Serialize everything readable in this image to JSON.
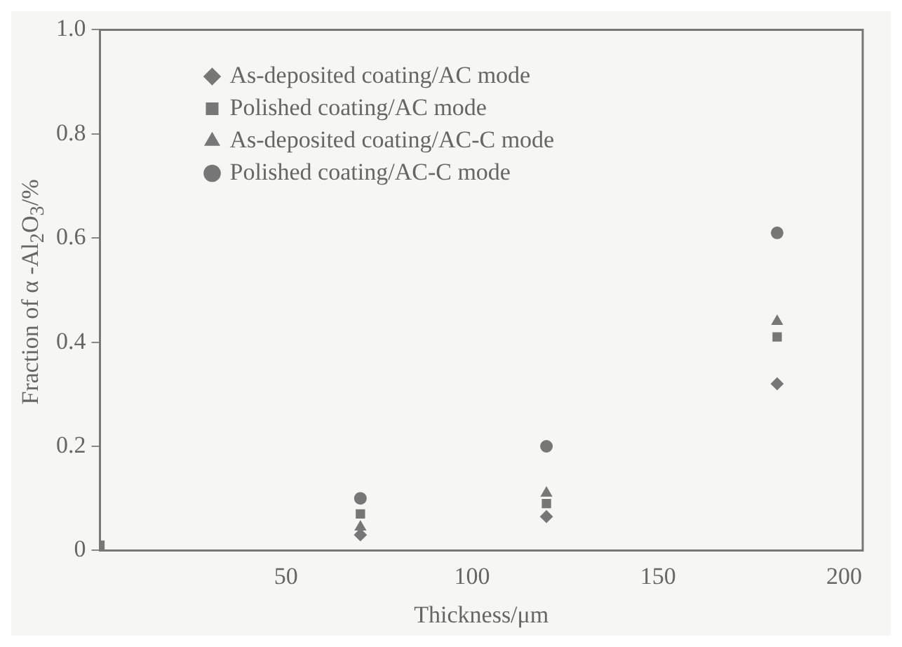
{
  "chart_data": {
    "type": "scatter",
    "xlabel": "Thickness/μm",
    "ylabel": "Fraction of α -Al$_{2}$O$_{3}$/%",
    "xlim": [
      0,
      205
    ],
    "xticks": [
      50,
      100,
      150,
      200
    ],
    "ylim": [
      0,
      1.0
    ],
    "yticks": [
      0,
      0.2,
      0.4,
      0.6,
      0.8,
      {
        "value": 1.0,
        "label": "1.0"
      }
    ],
    "grid": false,
    "legend": "top left",
    "series": [
      {
        "name": "As-deposited coating/AC mode",
        "color": "#777777",
        "marker": "diamond",
        "x": [
          70,
          120,
          182
        ],
        "values": [
          0.03,
          0.065,
          0.32
        ]
      },
      {
        "name": "Polished coating/AC mode",
        "color": "#777777",
        "marker": "square",
        "x": [
          0,
          70,
          120,
          182
        ],
        "values": [
          0.01,
          0.07,
          0.09,
          0.41
        ]
      },
      {
        "name": "As-deposited coating/AC-C mode",
        "color": "#777777",
        "marker": "triangle",
        "x": [
          70,
          120,
          182
        ],
        "values": [
          0.045,
          0.11,
          0.44
        ]
      },
      {
        "name": "Polished coating/AC-C mode",
        "color": "#777777",
        "marker": "circle",
        "x": [
          70,
          120,
          182
        ],
        "values": [
          0.1,
          0.2,
          0.61
        ]
      }
    ]
  }
}
